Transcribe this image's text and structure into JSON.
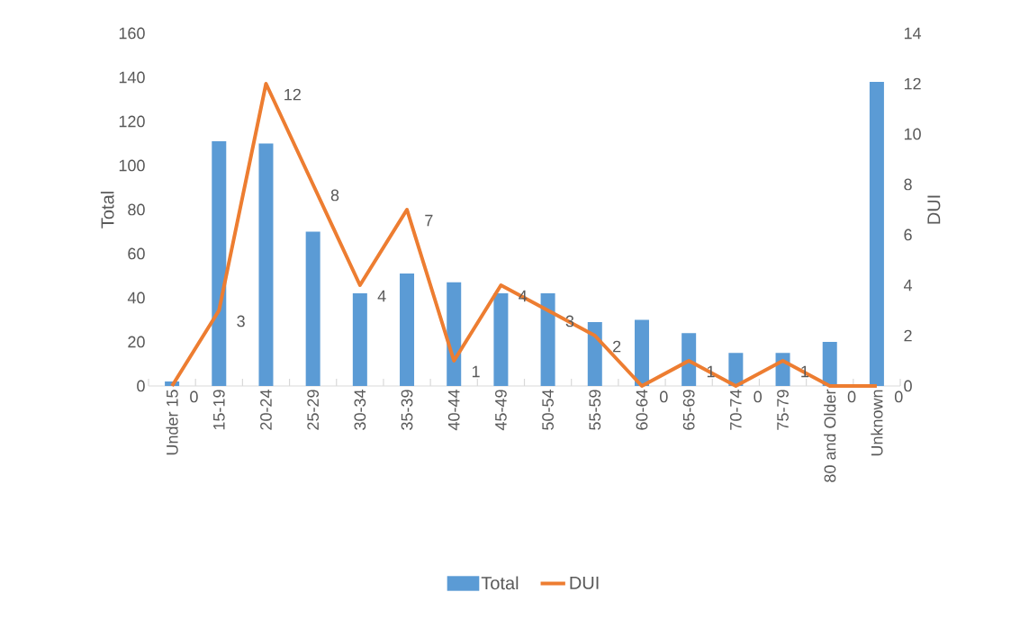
{
  "chart_data": {
    "type": "bar",
    "categories": [
      "Under 15",
      "15-19",
      "20-24",
      "25-29",
      "30-34",
      "35-39",
      "40-44",
      "45-49",
      "50-54",
      "55-59",
      "60-64",
      "65-69",
      "70-74",
      "75-79",
      "80 and Older",
      "Unknown"
    ],
    "series": [
      {
        "name": "Total",
        "color": "#5b9bd5",
        "values": [
          2,
          111,
          110,
          70,
          42,
          51,
          47,
          42,
          42,
          29,
          30,
          24,
          15,
          15,
          20,
          138
        ]
      },
      {
        "name": "DUI",
        "type": "line",
        "axis": "y2",
        "color": "#ed7d31",
        "values": [
          0,
          3,
          12,
          8,
          4,
          7,
          1,
          4,
          3,
          2,
          0,
          1,
          0,
          1,
          0,
          0
        ],
        "value_labels": [
          "0",
          "3",
          "12",
          "8",
          "4",
          "7",
          "1",
          "4",
          "3",
          "2",
          "0",
          "1",
          "0",
          "1",
          "0",
          "0"
        ]
      }
    ],
    "ylabel": "Total",
    "y2label": "DUI",
    "ylim": [
      0,
      160
    ],
    "yticks": [
      0,
      20,
      40,
      60,
      80,
      100,
      120,
      140,
      160
    ],
    "y2lim": [
      0,
      14
    ],
    "y2ticks": [
      0,
      2,
      4,
      6,
      8,
      10,
      12,
      14
    ],
    "legend": "bottom"
  }
}
